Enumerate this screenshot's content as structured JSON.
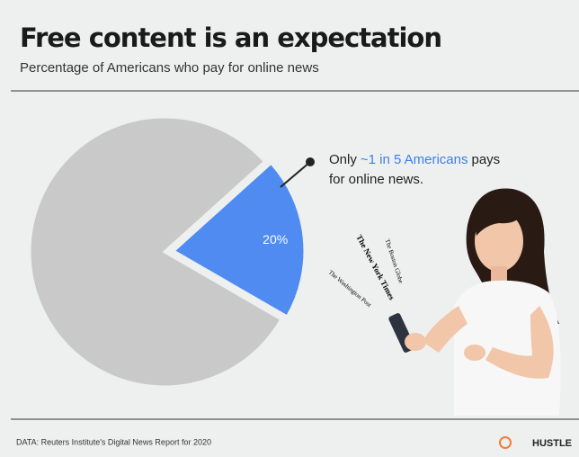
{
  "chart_data": {
    "type": "pie",
    "title": "Free content is an expectation",
    "subtitle": "Percentage of Americans who pay for online news",
    "categories": [
      null,
      null
    ],
    "values": [
      20,
      80
    ],
    "value_labels": [
      "20%",
      null
    ],
    "colors": [
      "#4f8bf0",
      "#c9c9c9"
    ],
    "annotation": [
      "Only",
      "~1 in 5 Americans",
      "pays",
      "for online news."
    ],
    "newspapers": [
      "The New York Times",
      "The Washington Post",
      "The Boston Globe"
    ],
    "source": "DATA: Reuters Institute's Digital News Report for 2020",
    "logo": "HUSTLE"
  }
}
